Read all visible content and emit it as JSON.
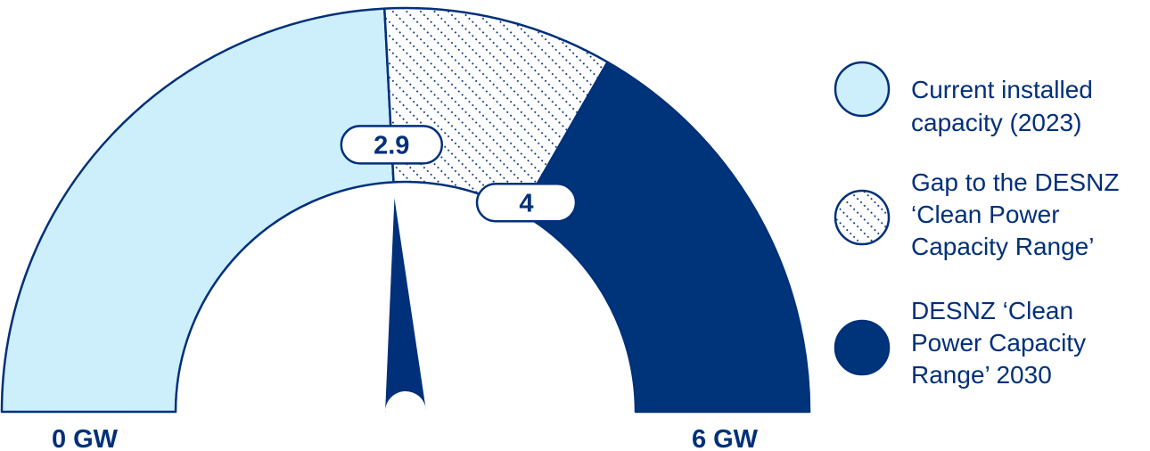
{
  "chart_data": {
    "type": "gauge",
    "title": "",
    "unit": "GW",
    "range": [
      0,
      6
    ],
    "axis": {
      "min_label": "0 GW",
      "max_label": "6 GW"
    },
    "pointer_value": 2.9,
    "segments": [
      {
        "key": "current",
        "name": "Current installed capacity (2023)",
        "name_lines": [
          "Current installed",
          "capacity (2023)"
        ],
        "start": 0,
        "end": 2.9,
        "label": "2.9",
        "fill": "#cdeefb",
        "pattern": "solid"
      },
      {
        "key": "gap",
        "name": "Gap to the DESNZ ‘Clean Power Capacity Range’",
        "name_lines": [
          "Gap to the DESNZ",
          "‘Clean Power",
          "Capacity Range’"
        ],
        "start": 2.9,
        "end": 4,
        "label": "4",
        "fill": "#ffffff",
        "pattern": "dots"
      },
      {
        "key": "range",
        "name": "DESNZ ‘Clean Power Capacity Range’ 2030",
        "name_lines": [
          "DESNZ ‘Clean",
          "Power Capacity",
          "Range’ 2030"
        ],
        "start": 4,
        "end": 6,
        "label": "",
        "fill": "#00347a",
        "pattern": "solid"
      }
    ],
    "colors": {
      "primary": "#00307a",
      "light": "#cdeefb",
      "outline": "#00307a"
    },
    "legend_position": "right"
  }
}
